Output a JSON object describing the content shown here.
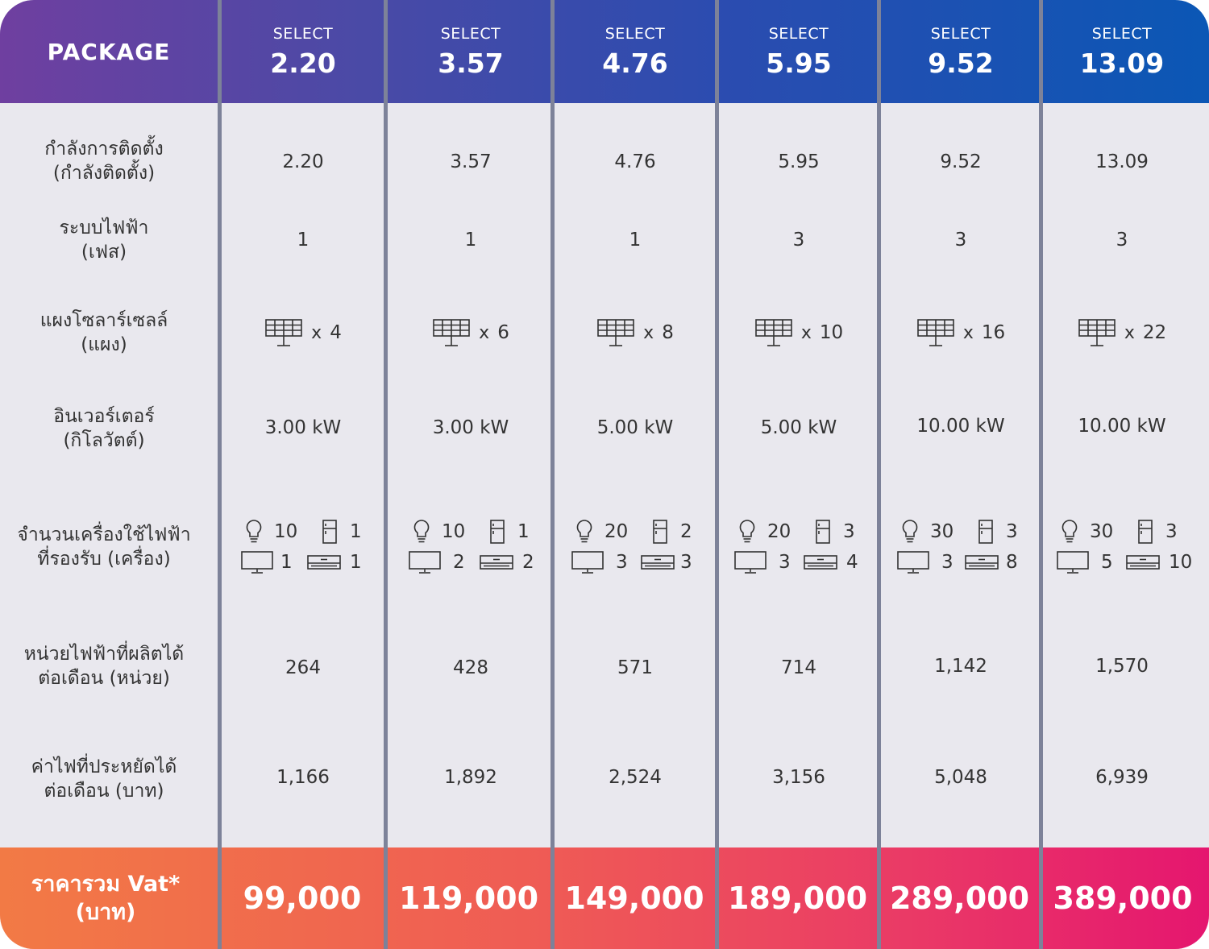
{
  "header": {
    "package_label": "PACKAGE",
    "select_word": "SELECT",
    "packages": [
      "2.20",
      "3.57",
      "4.76",
      "5.95",
      "9.52",
      "13.09"
    ]
  },
  "rows": {
    "capacity": {
      "label_line1": "กำลังการติดตั้ง",
      "label_line2": "(กำลังติดตั้ง)",
      "values": [
        "2.20",
        "3.57",
        "4.76",
        "5.95",
        "9.52",
        "13.09"
      ]
    },
    "phase": {
      "label_line1": "ระบบไฟฟ้า",
      "label_line2": "(เฟส)",
      "values": [
        "1",
        "1",
        "1",
        "3",
        "3",
        "3"
      ]
    },
    "panels": {
      "label_line1": "แผงโซลาร์เซลล์",
      "label_line2": "(แผง)",
      "multiplier": "x",
      "icon": "solar-panel-icon",
      "values": [
        "4",
        "6",
        "8",
        "10",
        "16",
        "22"
      ]
    },
    "inverter": {
      "label_line1": "อินเวอร์เตอร์",
      "label_line2": "(กิโลวัตต์)",
      "values": [
        "3.00 kW",
        "3.00 kW",
        "5.00 kW",
        "5.00 kW",
        "10.00 kW",
        "10.00 kW"
      ]
    },
    "appliances": {
      "label_line1": "จำนวนเครื่องใช้ไฟฟ้า",
      "label_line2": "ที่รองรับ (เครื่อง)",
      "icons": [
        "lightbulb-icon",
        "refrigerator-icon",
        "television-icon",
        "air-conditioner-icon"
      ],
      "values": [
        {
          "bulb": "10",
          "fridge": "1",
          "tv": "1",
          "ac": "1"
        },
        {
          "bulb": "10",
          "fridge": "1",
          "tv": "2",
          "ac": "2"
        },
        {
          "bulb": "20",
          "fridge": "2",
          "tv": "3",
          "ac": "3"
        },
        {
          "bulb": "20",
          "fridge": "3",
          "tv": "3",
          "ac": "4"
        },
        {
          "bulb": "30",
          "fridge": "3",
          "tv": "3",
          "ac": "8"
        },
        {
          "bulb": "30",
          "fridge": "3",
          "tv": "5",
          "ac": "10"
        }
      ]
    },
    "units": {
      "label_line1": "หน่วยไฟฟ้าที่ผลิตได้",
      "label_line2": "ต่อเดือน (หน่วย)",
      "values": [
        "264",
        "428",
        "571",
        "714",
        "1,142",
        "1,570"
      ]
    },
    "savings": {
      "label_line1": "ค่าไฟที่ประหยัดได้",
      "label_line2": "ต่อเดือน (บาท)",
      "values": [
        "1,166",
        "1,892",
        "2,524",
        "3,156",
        "5,048",
        "6,939"
      ]
    }
  },
  "footer": {
    "label_line1": "ราคารวม Vat*",
    "label_line2": "(บาท)",
    "prices": [
      "99,000",
      "119,000",
      "149,000",
      "189,000",
      "289,000",
      "389,000"
    ]
  },
  "colors": {
    "header_start": "#6f3fa0",
    "header_end": "#0b57b5",
    "footer_start": "#f27a45",
    "footer_end": "#e5166f",
    "body_bg": "#e9e8ee",
    "divider": "#7d8299"
  }
}
